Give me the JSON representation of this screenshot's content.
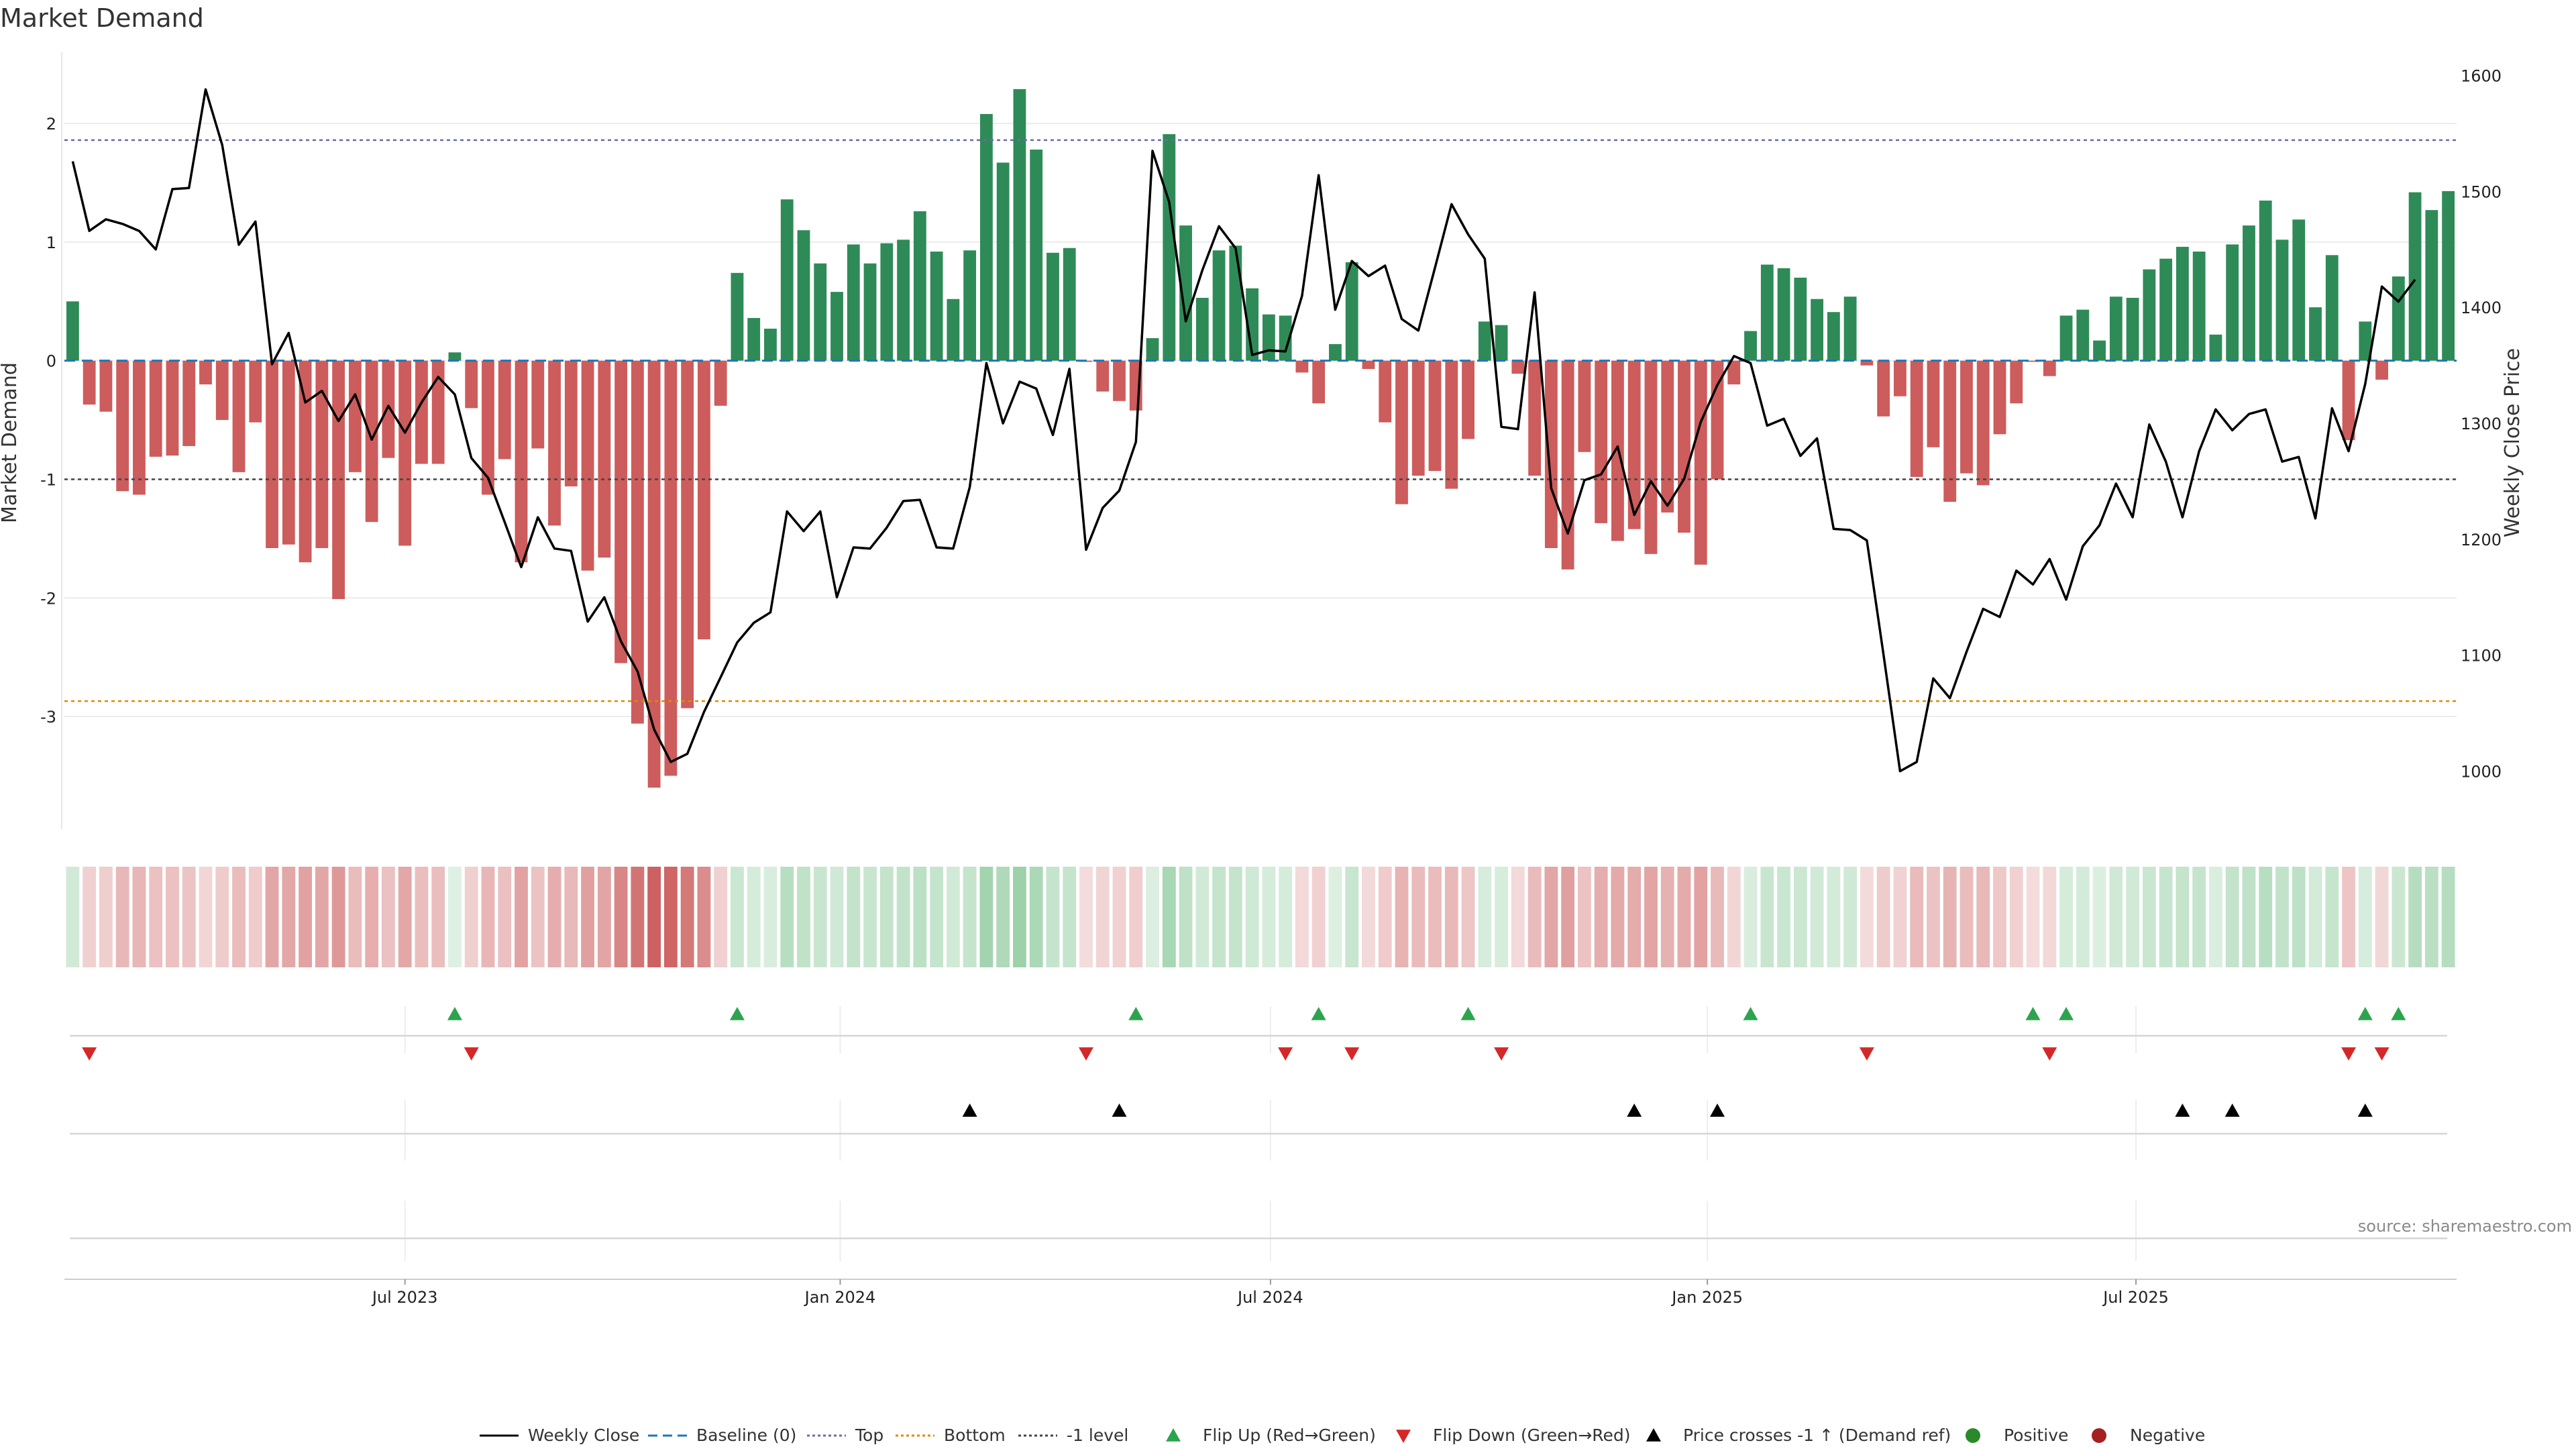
{
  "chart_data": {
    "type": "bar",
    "title": "Market Demand",
    "ylabel": "Market Demand",
    "y2label": "Weekly Close Price",
    "ylim": [
      -3.95,
      2.6
    ],
    "y2lim": [
      950,
      1620
    ],
    "yticks": [
      2,
      1,
      0,
      -1,
      -2,
      -3
    ],
    "y2ticks": [
      1600,
      1500,
      1400,
      1300,
      1200,
      1100,
      1000
    ],
    "x_ticks": [
      {
        "label": "Jul 2023",
        "week": 20.5
      },
      {
        "label": "Jan 2024",
        "week": 46.7
      },
      {
        "label": "Jul 2024",
        "week": 72.6
      },
      {
        "label": "Jan 2025",
        "week": 98.9
      },
      {
        "label": "Jul 2025",
        "week": 124.7
      }
    ],
    "reference_lines": {
      "top": 1.86,
      "bottom": -2.87,
      "minus_one": -1.0
    },
    "demand": [
      0.5,
      -0.37,
      -0.43,
      -1.1,
      -1.13,
      -0.81,
      -0.8,
      -0.72,
      -0.2,
      -0.5,
      -0.94,
      -0.52,
      -1.58,
      -1.55,
      -1.7,
      -1.58,
      -2.01,
      -0.94,
      -1.36,
      -0.82,
      -1.56,
      -0.87,
      -0.87,
      0.07,
      -0.4,
      -1.13,
      -0.83,
      -1.7,
      -0.74,
      -1.39,
      -1.06,
      -1.77,
      -1.66,
      -2.55,
      -3.06,
      -3.6,
      -3.5,
      -2.93,
      -2.35,
      -0.38,
      0.74,
      0.36,
      0.27,
      1.36,
      1.1,
      0.82,
      0.58,
      0.98,
      0.82,
      0.99,
      1.02,
      1.26,
      0.92,
      0.52,
      0.93,
      2.08,
      1.67,
      2.29,
      1.78,
      0.91,
      0.95,
      -0.01,
      -0.26,
      -0.34,
      -0.42,
      0.19,
      1.91,
      1.14,
      0.53,
      0.93,
      0.97,
      0.61,
      0.39,
      0.38,
      -0.1,
      -0.36,
      0.14,
      0.83,
      -0.07,
      -0.52,
      -1.21,
      -0.97,
      -0.93,
      -1.08,
      -0.66,
      0.33,
      0.3,
      -0.11,
      -0.97,
      -1.58,
      -1.76,
      -0.77,
      -1.37,
      -1.52,
      -1.42,
      -1.63,
      -1.28,
      -1.45,
      -1.72,
      -1.0,
      -0.2,
      0.25,
      0.81,
      0.78,
      0.7,
      0.52,
      0.41,
      0.54,
      -0.04,
      -0.47,
      -0.3,
      -0.98,
      -0.73,
      -1.19,
      -0.95,
      -1.05,
      -0.62,
      -0.36,
      -0.01,
      -0.13,
      0.38,
      0.43,
      0.17,
      0.54,
      0.53,
      0.77,
      0.86,
      0.96,
      0.92,
      0.22,
      0.98,
      1.14,
      1.35,
      1.02,
      1.19,
      0.45,
      0.89,
      -0.67,
      0.33,
      -0.16,
      0.71,
      1.42,
      1.27,
      1.43
    ],
    "price": [
      1526,
      1466,
      1476,
      1472,
      1466,
      1450,
      1502,
      1503,
      1588,
      1540,
      1454,
      1474,
      1351,
      1378,
      1318,
      1328,
      1302,
      1325,
      1286,
      1315,
      1292,
      1318,
      1340,
      1325,
      1270,
      1253,
      1215,
      1176,
      1219,
      1192,
      1190,
      1129,
      1150,
      1112,
      1086,
      1036,
      1008,
      1015,
      1051,
      1081,
      1111,
      1128,
      1137,
      1224,
      1207,
      1224,
      1150,
      1193,
      1192,
      1210,
      1233,
      1234,
      1193,
      1192,
      1245,
      1352,
      1300,
      1336,
      1330,
      1290,
      1347,
      1191,
      1227,
      1242,
      1284,
      1535,
      1491,
      1388,
      1432,
      1470,
      1451,
      1359,
      1363,
      1362,
      1410,
      1514,
      1398,
      1440,
      1427,
      1436,
      1390,
      1380,
      1434,
      1489,
      1463,
      1442,
      1297,
      1295,
      1413,
      1244,
      1205,
      1251,
      1256,
      1280,
      1221,
      1250,
      1229,
      1252,
      1301,
      1333,
      1358,
      1352,
      1298,
      1304,
      1272,
      1287,
      1209,
      1208,
      1199,
      1101,
      1000,
      1008,
      1080,
      1063,
      1103,
      1140,
      1133,
      1173,
      1161,
      1183,
      1148,
      1194,
      1212,
      1248,
      1219,
      1299,
      1267,
      1219,
      1276,
      1312,
      1294,
      1308,
      1312,
      1267,
      1271,
      1218,
      1313,
      1276,
      1334,
      1418,
      1405,
      1424
    ],
    "signals": {
      "flip_up": [
        23,
        40,
        64,
        75,
        84,
        101,
        118,
        120,
        138,
        140
      ],
      "flip_down": [
        1,
        24,
        61,
        73,
        77,
        86,
        108,
        119,
        137,
        139
      ],
      "price_cross_up": [
        54,
        63,
        94,
        99,
        127,
        130,
        138
      ]
    },
    "legend": [
      {
        "label": "Weekly Close",
        "kind": "line-solid",
        "color": "#000000"
      },
      {
        "label": "Baseline (0)",
        "kind": "line-dash",
        "color": "#1f77b4"
      },
      {
        "label": "Top",
        "kind": "line-dot",
        "color": "#6a6aa8"
      },
      {
        "label": "Bottom",
        "kind": "line-dot",
        "color": "#e08a00"
      },
      {
        "label": "-1 level",
        "kind": "line-dot",
        "color": "#444444"
      },
      {
        "label": "Flip Up (Red→Green)",
        "kind": "tri-up",
        "color": "#2ca44e"
      },
      {
        "label": "Flip Down (Green→Red)",
        "kind": "tri-down",
        "color": "#d62728"
      },
      {
        "label": "Price crosses -1 ↑ (Demand ref)",
        "kind": "tri-up",
        "color": "#000000"
      },
      {
        "label": "Positive",
        "kind": "dot",
        "color": "#2a8a2a"
      },
      {
        "label": "Negative",
        "kind": "dot",
        "color": "#a52020"
      }
    ],
    "source": "source: sharemaestro.com"
  },
  "colors": {
    "positive_bar": "#2e8b57",
    "negative_bar": "#cd5c5c",
    "price_line": "#000000"
  }
}
